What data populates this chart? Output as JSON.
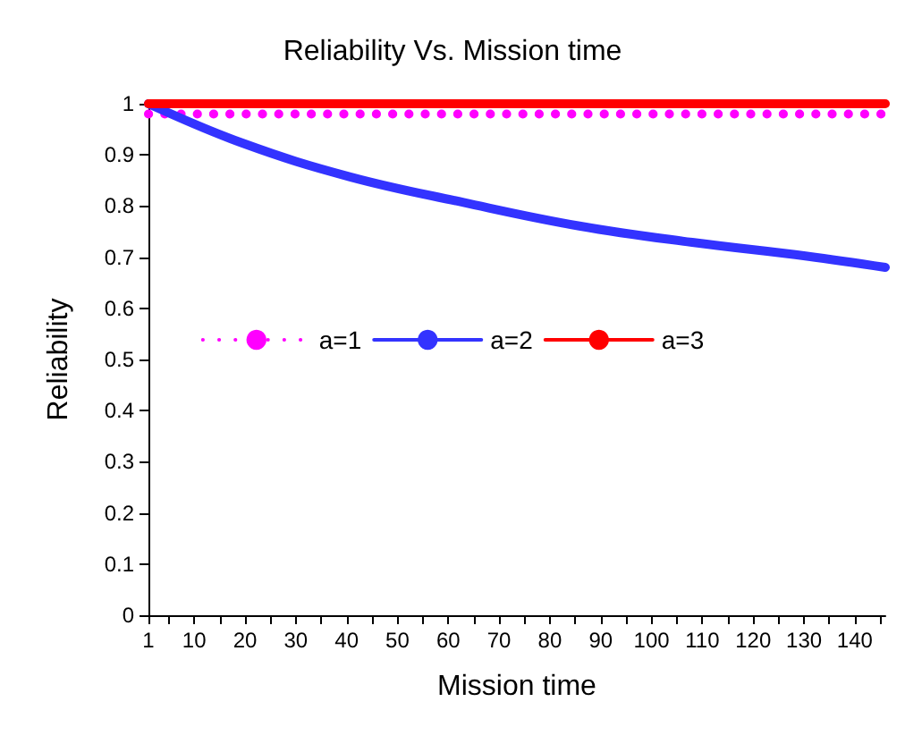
{
  "chart_data": {
    "type": "line",
    "title": "Reliability Vs. Mission time",
    "xlabel": "Mission time",
    "ylabel": "Reliability",
    "xlim": [
      1,
      146
    ],
    "xticks": [
      1,
      {
        "value": 5,
        "label": null
      },
      10,
      {
        "value": 15,
        "label": null
      },
      20,
      {
        "value": 25,
        "label": null
      },
      30,
      {
        "value": 35,
        "label": null
      },
      40,
      {
        "value": 45,
        "label": null
      },
      50,
      {
        "value": 55,
        "label": null
      },
      60,
      {
        "value": 65,
        "label": null
      },
      70,
      {
        "value": 75,
        "label": null
      },
      80,
      {
        "value": 85,
        "label": null
      },
      90,
      {
        "value": 95,
        "label": null
      },
      100,
      {
        "value": 105,
        "label": null
      },
      110,
      {
        "value": 115,
        "label": null
      },
      120,
      {
        "value": 125,
        "label": null
      },
      130,
      {
        "value": 135,
        "label": null
      },
      140,
      {
        "value": 145,
        "label": null
      }
    ],
    "ylim": [
      0,
      1
    ],
    "yticks": [
      0,
      0.1,
      0.2,
      0.3,
      0.4,
      0.5,
      0.6,
      0.7,
      0.8,
      0.9,
      1
    ],
    "grid": false,
    "legend": "center",
    "marker": "none",
    "series": [
      {
        "name": "a=1",
        "color": "#ff00ff",
        "line_style": "dotted",
        "x": [
          1,
          146
        ],
        "values": [
          0.98,
          0.98
        ]
      },
      {
        "name": "a=2",
        "color": "#3333ff",
        "line_style": "solid",
        "x": [
          1,
          19.5,
          40.7,
          63,
          85.8,
          108,
          130.6,
          146
        ],
        "values": [
          1.0,
          0.923,
          0.857,
          0.807,
          0.761,
          0.729,
          0.702,
          0.68
        ]
      },
      {
        "name": "a=3",
        "color": "#ff0000",
        "line_style": "solid",
        "x": [
          1,
          146
        ],
        "values": [
          1.0,
          1.0
        ]
      }
    ]
  }
}
